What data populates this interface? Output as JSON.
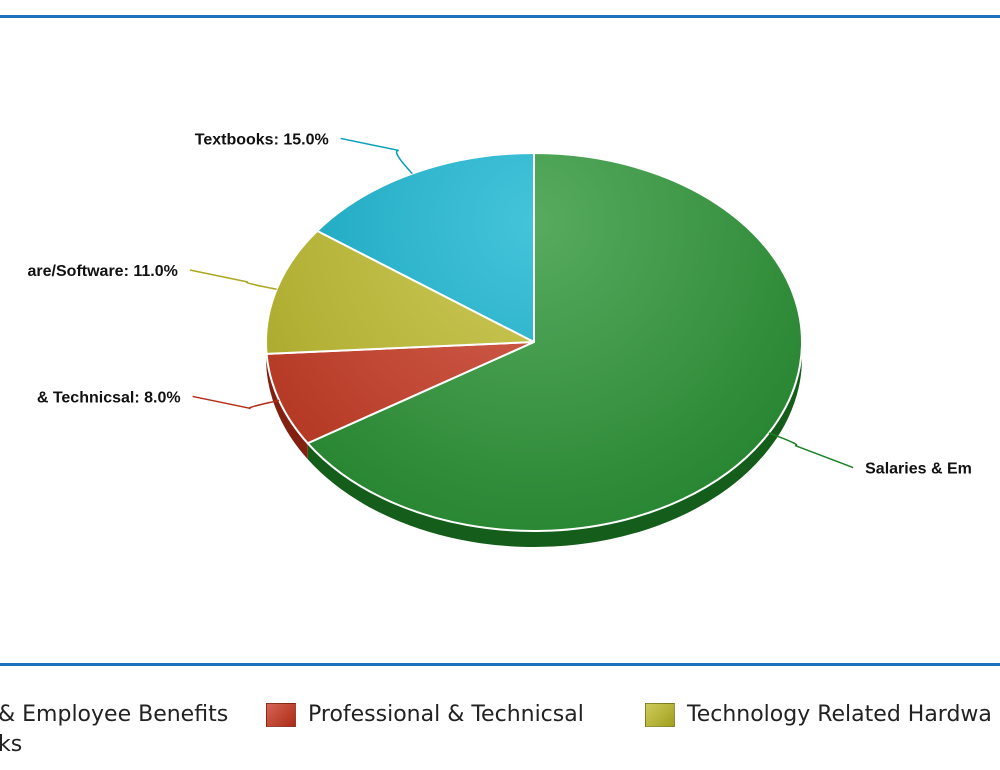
{
  "chart_data": {
    "type": "pie",
    "title": "",
    "slices": [
      {
        "label": "Salaries & Employee Benefits",
        "value": 66.0,
        "color": "#1f8f2a",
        "display": "Salaries & Em"
      },
      {
        "label": "Professional & Technicsal",
        "value": 8.0,
        "color": "#c8321a",
        "display": "& Technicsal: 8.0%"
      },
      {
        "label": "Technology Related Hardware/Software",
        "value": 11.0,
        "color": "#bdbb23",
        "display": "are/Software: 11.0%"
      },
      {
        "label": "Textbooks",
        "value": 15.0,
        "color": "#06b0cf",
        "display": "Textbooks: 15.0%"
      }
    ],
    "legend": {
      "placement": "bottom",
      "items": [
        {
          "text": "& Employee Benefits",
          "color": "#1f8f2a",
          "show_swatch": false
        },
        {
          "text": "Professional & Technicsal",
          "color": "#c8321a",
          "show_swatch": true
        },
        {
          "text": "Technology Related Hardwa",
          "color": "#bdbb23",
          "show_swatch": true
        },
        {
          "text": "ks",
          "color": "#06b0cf",
          "show_swatch": false
        }
      ]
    }
  }
}
